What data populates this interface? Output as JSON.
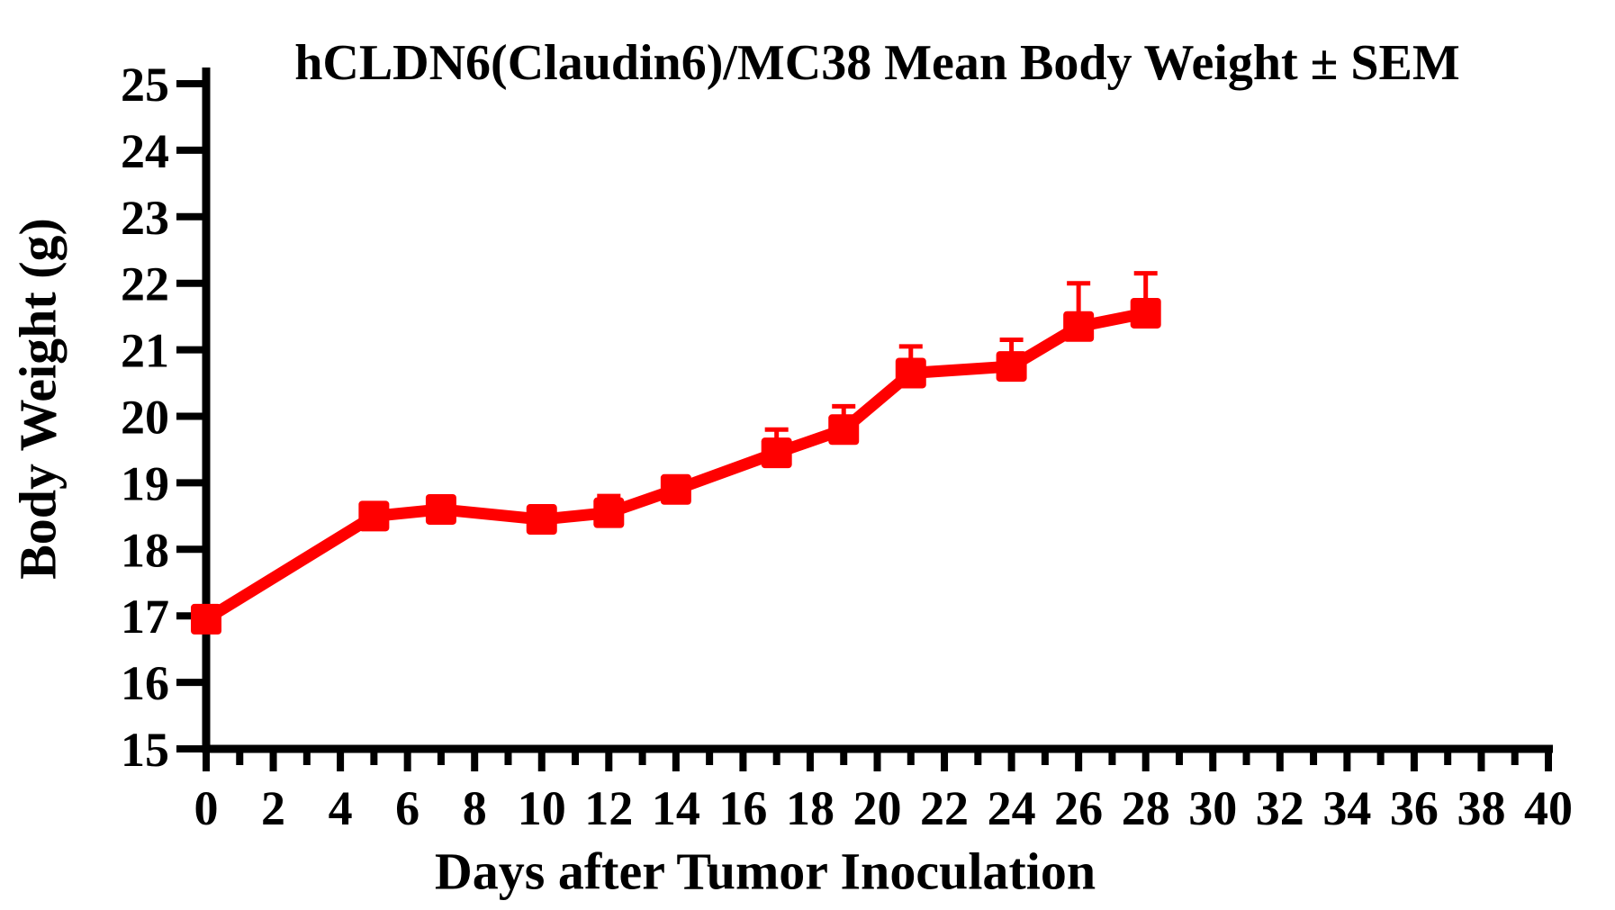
{
  "chart_data": {
    "type": "line",
    "title": "hCLDN6(Claudin6)/MC38 Mean Body Weight ± SEM",
    "xlabel": "Days after Tumor Inoculation",
    "ylabel": "Body Weight (g)",
    "xlim": [
      0,
      40
    ],
    "ylim": [
      15,
      25
    ],
    "x_tick_labels": [
      0,
      2,
      4,
      6,
      8,
      10,
      12,
      14,
      16,
      18,
      20,
      22,
      24,
      26,
      28,
      30,
      32,
      34,
      36,
      38,
      40
    ],
    "x_minor_tick_step": 1,
    "y_tick_labels": [
      15,
      16,
      17,
      18,
      19,
      20,
      21,
      22,
      23,
      24,
      25
    ],
    "grid": false,
    "legend_position": "none",
    "axis_color": "#000000",
    "background_color": "#ffffff",
    "series": [
      {
        "name": "hCLDN6(Claudin6)/MC38 mean body weight",
        "color": "#ff0000",
        "marker": "square",
        "error_bars": "SEM, upper only",
        "x": [
          0,
          5,
          7,
          10,
          12,
          14,
          17,
          19,
          21,
          24,
          26,
          28
        ],
        "y": [
          16.95,
          18.5,
          18.6,
          18.45,
          18.55,
          18.9,
          19.45,
          19.8,
          20.65,
          20.75,
          21.35,
          21.55
        ],
        "sem_upper": [
          0,
          0,
          0,
          0,
          0.25,
          0,
          0.35,
          0.35,
          0.4,
          0.4,
          0.65,
          0.6
        ]
      }
    ]
  }
}
